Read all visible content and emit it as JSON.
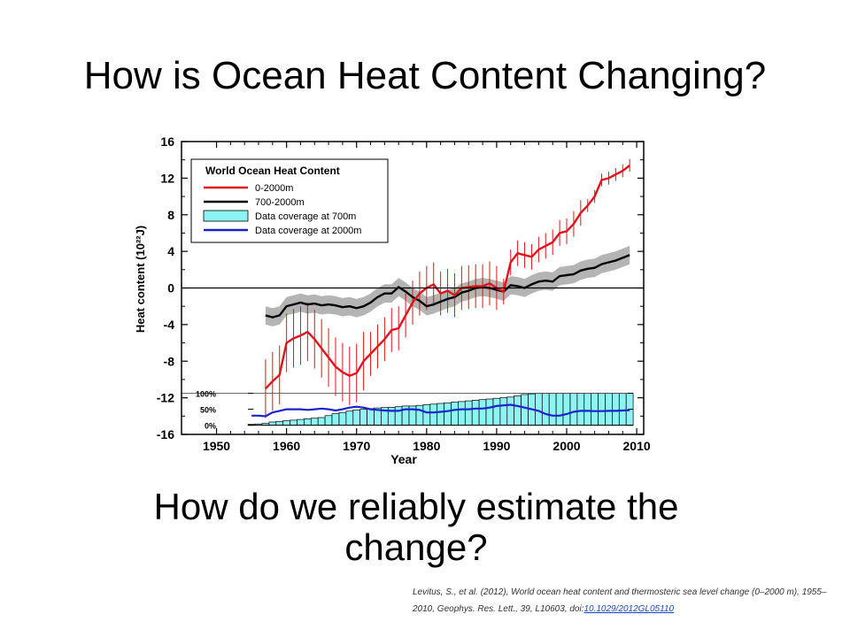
{
  "slide": {
    "title": "How is Ocean Heat Content Changing?",
    "subtitle": "How do we reliably estimate the change?",
    "citation": {
      "text": "Levitus, S., et al. (2012), World ocean heat content and thermosteric sea level change (0–2000 m), 1955–2010, Geophys. Res. Lett., 39, L10603, doi:",
      "doi_link": "10.1029/2012GL05110"
    }
  },
  "chart_data": {
    "type": "line",
    "ylabel": "Heat content (10²²J)",
    "xlabel": "Year",
    "xlim": [
      1945,
      2011
    ],
    "ylim": [
      -16,
      16
    ],
    "x_ticks": [
      1950,
      1960,
      1970,
      1980,
      1990,
      2000,
      2010
    ],
    "y_ticks": [
      16,
      12,
      8,
      4,
      0,
      -4,
      -8,
      -12,
      -16
    ],
    "legend": {
      "title": "World Ocean Heat Content",
      "placement": "top-left",
      "entries": [
        "0-2000m",
        "700-2000m",
        "Data coverage at 700m",
        "Data coverage at 2000m"
      ]
    },
    "colors": {
      "ocean_0_2000": "#e0141c",
      "ocean_700_2000": "#000000",
      "coverage_700": "#8ef3f3",
      "coverage_2000": "#1b22cc",
      "band": "#b4b4b4"
    },
    "series": [
      {
        "name": "0-2000m",
        "x": [
          1957,
          1958,
          1959,
          1960,
          1961,
          1962,
          1963,
          1964,
          1965,
          1966,
          1967,
          1968,
          1969,
          1970,
          1971,
          1972,
          1973,
          1974,
          1975,
          1976,
          1977,
          1978,
          1979,
          1980,
          1981,
          1982,
          1983,
          1984,
          1985,
          1986,
          1987,
          1988,
          1989,
          1990,
          1991,
          1992,
          1993,
          1994,
          1995,
          1996,
          1997,
          1998,
          1999,
          2000,
          2001,
          2002,
          2003,
          2004,
          2005,
          2006,
          2007,
          2008,
          2009
        ],
        "y": [
          -11,
          -10.2,
          -9.5,
          -6,
          -5.5,
          -5.2,
          -4.8,
          -5.6,
          -6.6,
          -7.6,
          -8.6,
          -9.2,
          -9.6,
          -9.3,
          -8.0,
          -7.2,
          -6.4,
          -5.6,
          -4.6,
          -4.4,
          -3.0,
          -1.6,
          -0.6,
          0.0,
          0.4,
          -0.6,
          -0.3,
          -0.8,
          0.0,
          0.1,
          0.2,
          0.2,
          0.5,
          0.0,
          -0.4,
          2.8,
          3.8,
          3.6,
          3.4,
          4.2,
          4.6,
          5.0,
          6.0,
          6.2,
          7.0,
          8.2,
          9.0,
          10.0,
          11.8,
          12.0,
          12.4,
          12.8,
          13.4
        ]
      },
      {
        "name": "700-2000m",
        "x": [
          1957,
          1958,
          1959,
          1960,
          1961,
          1962,
          1963,
          1964,
          1965,
          1966,
          1967,
          1968,
          1969,
          1970,
          1971,
          1972,
          1973,
          1974,
          1975,
          1976,
          1977,
          1978,
          1979,
          1980,
          1981,
          1982,
          1983,
          1984,
          1985,
          1986,
          1987,
          1988,
          1989,
          1990,
          1991,
          1992,
          1993,
          1994,
          1995,
          1996,
          1997,
          1998,
          1999,
          2000,
          2001,
          2002,
          2003,
          2004,
          2005,
          2006,
          2007,
          2008,
          2009
        ],
        "y": [
          -3.0,
          -3.2,
          -3.0,
          -2.0,
          -1.8,
          -1.6,
          -1.8,
          -1.7,
          -1.9,
          -1.8,
          -1.9,
          -2.1,
          -2.0,
          -2.2,
          -2.0,
          -1.6,
          -1.0,
          -0.6,
          -0.6,
          0.1,
          -0.4,
          -1.0,
          -1.4,
          -2.0,
          -1.8,
          -1.5,
          -1.2,
          -1.0,
          -0.5,
          -0.3,
          0.0,
          0.1,
          0.0,
          -0.2,
          -0.4,
          0.3,
          0.2,
          0.0,
          0.4,
          0.7,
          0.8,
          0.7,
          1.3,
          1.4,
          1.5,
          1.9,
          2.1,
          2.2,
          2.6,
          2.8,
          3.0,
          3.3,
          3.6
        ]
      }
    ],
    "coverage": {
      "years": [
        1955,
        1956,
        1957,
        1958,
        1959,
        1960,
        1961,
        1962,
        1963,
        1964,
        1965,
        1966,
        1967,
        1968,
        1969,
        1970,
        1971,
        1972,
        1973,
        1974,
        1975,
        1976,
        1977,
        1978,
        1979,
        1980,
        1981,
        1982,
        1983,
        1984,
        1985,
        1986,
        1987,
        1988,
        1989,
        1990,
        1991,
        1992,
        1993,
        1994,
        1995,
        1996,
        1997,
        1998,
        1999,
        2000,
        2001,
        2002,
        2003,
        2004,
        2005,
        2006,
        2007,
        2008,
        2009
      ],
      "coverage_700_pct": [
        3,
        4,
        6,
        10,
        12,
        14,
        16,
        18,
        20,
        22,
        24,
        30,
        36,
        40,
        44,
        48,
        50,
        52,
        54,
        55,
        56,
        58,
        60,
        60,
        62,
        64,
        66,
        68,
        70,
        72,
        74,
        76,
        78,
        80,
        82,
        84,
        86,
        88,
        92,
        96,
        98,
        100,
        100,
        100,
        100,
        100,
        100,
        100,
        100,
        100,
        100,
        100,
        100,
        100,
        100
      ],
      "coverage_2000_pct": [
        30,
        30,
        28,
        40,
        45,
        50,
        50,
        50,
        48,
        50,
        52,
        50,
        46,
        50,
        55,
        58,
        55,
        50,
        48,
        46,
        45,
        45,
        50,
        50,
        48,
        40,
        40,
        42,
        44,
        48,
        50,
        50,
        52,
        52,
        55,
        60,
        62,
        64,
        60,
        55,
        50,
        45,
        35,
        30,
        30,
        35,
        42,
        45,
        45,
        44,
        44,
        45,
        45,
        46,
        47
      ],
      "axis_labels": [
        "100%",
        "50%",
        "0%"
      ]
    }
  }
}
